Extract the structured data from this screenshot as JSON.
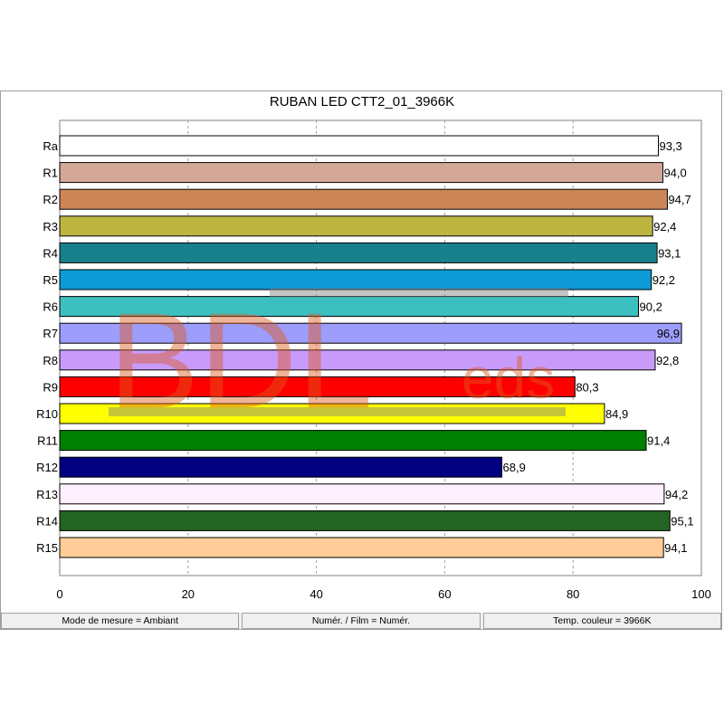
{
  "window": {
    "title": "RUBAN LED CTT2_01_3966K"
  },
  "chart_data": {
    "type": "bar",
    "orientation": "horizontal",
    "title": "RUBAN LED CTT2_01_3966K",
    "xlabel": "",
    "ylabel": "",
    "xlim": [
      0,
      100
    ],
    "x_ticks": [
      0,
      20,
      40,
      60,
      80,
      100
    ],
    "grid": "vertical",
    "categories": [
      "Ra",
      "R1",
      "R2",
      "R3",
      "R4",
      "R5",
      "R6",
      "R7",
      "R8",
      "R9",
      "R10",
      "R11",
      "R12",
      "R13",
      "R14",
      "R15"
    ],
    "values": [
      93.3,
      94.0,
      94.7,
      92.4,
      93.1,
      92.2,
      90.2,
      96.9,
      92.8,
      80.3,
      84.9,
      91.4,
      68.9,
      94.2,
      95.1,
      94.1
    ],
    "value_labels": [
      "93,3",
      "94,0",
      "94,7",
      "92,4",
      "93,1",
      "92,2",
      "90,2",
      "96,9",
      "92,8",
      "80,3",
      "84,9",
      "91,4",
      "68,9",
      "94,2",
      "95,1",
      "94,1"
    ],
    "colors": [
      "#ffffff",
      "#d4a898",
      "#cc8656",
      "#bcb641",
      "#18808a",
      "#0e9ad6",
      "#3cbfbf",
      "#9d9dfb",
      "#c89bfb",
      "#ff0000",
      "#ffff00",
      "#008000",
      "#000080",
      "#fff0ff",
      "#236323",
      "#ffcc9a"
    ],
    "watermark": "BDLeds"
  },
  "statusbar": {
    "mode": "Mode de mesure = Ambiant",
    "numer": "Numér. / Film = Numér.",
    "temp": "Temp. couleur = 3966K"
  }
}
